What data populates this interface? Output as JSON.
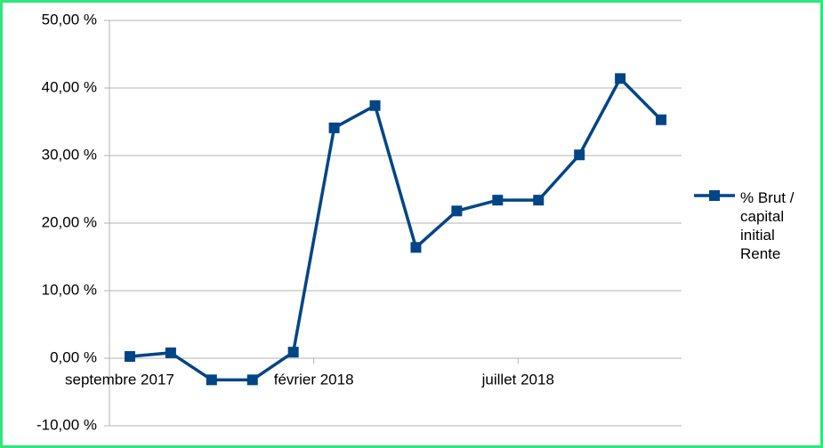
{
  "chart_data": {
    "type": "line",
    "x": [
      "2017-09",
      "2017-10",
      "2017-11",
      "2017-12",
      "2018-01",
      "2018-02",
      "2018-03",
      "2018-04",
      "2018-05",
      "2018-06",
      "2018-07",
      "2018-08",
      "2018-09",
      "2018-10"
    ],
    "series": [
      {
        "name": "% Brut / capital initial Rente",
        "color": "#004586",
        "values": [
          0.26,
          0.8,
          -3.2,
          -3.2,
          0.9,
          34.1,
          37.4,
          16.4,
          21.8,
          23.4,
          23.4,
          30.1,
          41.4,
          35.3
        ]
      }
    ],
    "xlim": [
      "2017-09",
      "2018-11"
    ],
    "xticks": [
      {
        "value": "2017-09",
        "label": "septembre 2017"
      },
      {
        "value": "2018-02",
        "label": "février 2018"
      },
      {
        "value": "2018-07",
        "label": "juillet 2018"
      }
    ],
    "ylim": [
      -10,
      50
    ],
    "yticks": [
      {
        "value": -10,
        "label": "-10,00 %"
      },
      {
        "value": 0,
        "label": "0,00 %"
      },
      {
        "value": 10,
        "label": "10,00 %"
      },
      {
        "value": 20,
        "label": "20,00 %"
      },
      {
        "value": 30,
        "label": "30,00 %"
      },
      {
        "value": 40,
        "label": "40,00 %"
      },
      {
        "value": 50,
        "label": "50,00 %"
      }
    ],
    "grid": true,
    "legend": "right"
  }
}
